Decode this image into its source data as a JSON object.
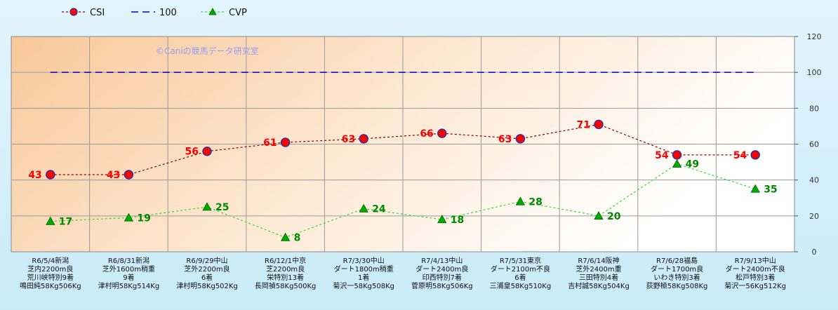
{
  "chart_data": {
    "type": "line",
    "title": "",
    "watermark": "©Caniの競馬データ研究室",
    "legend": {
      "position": "top-left",
      "entries": [
        {
          "name": "CSI",
          "color": "#8b0000",
          "marker_fill": "#ff0000",
          "style": "dotted",
          "marker": "circle"
        },
        {
          "name": "100",
          "color": "#0000cc",
          "style": "dashed",
          "marker": "none"
        },
        {
          "name": "CVP",
          "color": "#33dd33",
          "marker_fill": "#00aa00",
          "style": "dotted",
          "marker": "triangle"
        }
      ]
    },
    "y_axis": {
      "position": "right",
      "min": 0,
      "max": 120,
      "ticks": [
        "0",
        "20",
        "40",
        "60",
        "80",
        "100",
        "120"
      ]
    },
    "grid": true,
    "categories": [
      [
        "R6/5/4新潟",
        "芝内2200m良",
        "荒川峡特別9着",
        "鳴田純58Kg506Kg"
      ],
      [
        "R6/8/31新潟",
        "芝外1600m稍重",
        "9着",
        "津村明58Kg514Kg"
      ],
      [
        "R6/9/29中山",
        "芝外2200m良",
        "6着",
        "津村明58Kg502Kg"
      ],
      [
        "R6/12/1中京",
        "芝2200m良",
        "栄特別13着",
        "長岡禎58Kg500Kg"
      ],
      [
        "R7/3/30中山",
        "ダート1800m稍重",
        "1着",
        "菊沢一58Kg508Kg"
      ],
      [
        "R7/4/13中山",
        "ダート2400m良",
        "印西特別7着",
        "菅原明58Kg506Kg"
      ],
      [
        "R7/5/31東京",
        "ダート2100m不良",
        "6着",
        "三浦皇58Kg510Kg"
      ],
      [
        "R7/6/14阪神",
        "芝外2400m重",
        "三田特別4着",
        "吉村誠58Kg504Kg"
      ],
      [
        "R7/6/28福島",
        "ダート1700m良",
        "いわき特別3着",
        "荻野極58Kg508Kg"
      ],
      [
        "R7/9/13中山",
        "ダート2400m不良",
        "松戸特別3着",
        "菊沢一56Kg512Kg"
      ]
    ],
    "series": [
      {
        "name": "CSI",
        "values": [
          43,
          43,
          56,
          61,
          63,
          66,
          63,
          71,
          54,
          54
        ],
        "label_color": "#ff0000",
        "label_side": "left"
      },
      {
        "name": "100",
        "values": [
          100,
          100,
          100,
          100,
          100,
          100,
          100,
          100,
          100,
          100
        ]
      },
      {
        "name": "CVP",
        "values": [
          17,
          19,
          25,
          8,
          24,
          18,
          28,
          20,
          49,
          35
        ],
        "label_color": "#008800",
        "label_side": "right"
      }
    ]
  }
}
